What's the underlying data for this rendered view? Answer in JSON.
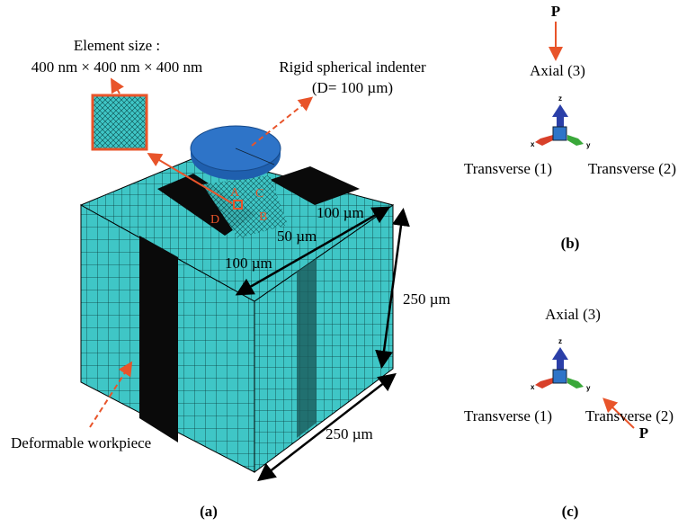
{
  "panel_a": {
    "label": "(a)",
    "element_size_title": "Element size :",
    "element_size": "400 nm × 400 nm × 400 nm",
    "indenter": "Rigid spherical indenter",
    "indenter_diameter": "(D= 100 µm)",
    "points": {
      "a": "A",
      "b": "B",
      "c": "C",
      "d": "D"
    },
    "dimensions": {
      "top_back": "100 µm",
      "top_mid": "50 µm",
      "top_front": "100 µm",
      "height": "250 µm",
      "depth": "250 µm"
    },
    "workpiece": "Deformable workpiece"
  },
  "panel_b": {
    "label": "(b)",
    "load": "P",
    "axial": "Axial (3)",
    "transverse_1": "Transverse (1)",
    "transverse_2": "Transverse (2)",
    "triad": {
      "z": "z",
      "x": "x",
      "y": "y"
    }
  },
  "panel_c": {
    "label": "(c)",
    "load": "P",
    "axial": "Axial (3)",
    "transverse_1": "Transverse (1)",
    "transverse_2": "Transverse (2)",
    "triad": {
      "z": "z",
      "x": "x",
      "y": "y"
    }
  }
}
